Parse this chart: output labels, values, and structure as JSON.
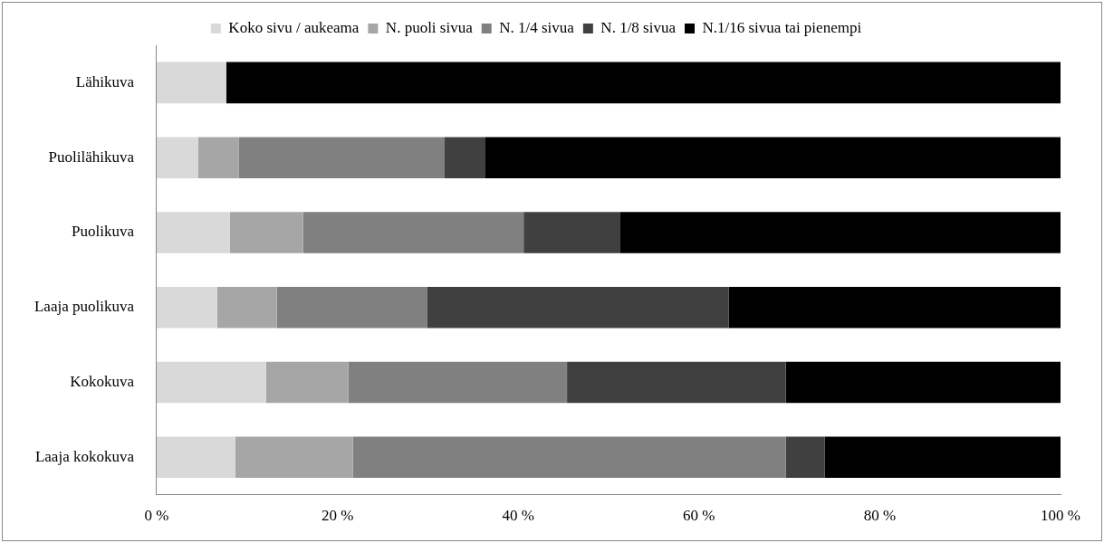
{
  "chart_data": {
    "type": "bar",
    "orientation": "horizontal",
    "stacked": true,
    "legend": "top",
    "grid": false,
    "categories": [
      "Lähikuva",
      "Puolilähikuva",
      "Puolikuva",
      "Laaja puolikuva",
      "Kokokuva",
      "Laaja kokokuva"
    ],
    "xlim": [
      0,
      100
    ],
    "xticks": [
      {
        "value": 0,
        "label": "0 %"
      },
      {
        "value": 20,
        "label": "20 %"
      },
      {
        "value": 40,
        "label": "40 %"
      },
      {
        "value": 60,
        "label": "60 %"
      },
      {
        "value": 80,
        "label": "80 %"
      },
      {
        "value": 100,
        "label": "100 %"
      }
    ],
    "series": [
      {
        "name": "Koko sivu / aukeama",
        "color": "#d9d9d9",
        "values": [
          7.7,
          4.6,
          8.1,
          6.7,
          12.1,
          8.7
        ]
      },
      {
        "name": "N. puoli sivua",
        "color": "#a6a6a6",
        "values": [
          null,
          4.5,
          8.1,
          6.6,
          9.1,
          13.0
        ]
      },
      {
        "name": "N. 1/4 sivua",
        "color": "#808080",
        "values": [
          null,
          22.7,
          24.4,
          16.6,
          24.2,
          47.9
        ]
      },
      {
        "name": "N. 1/8 sivua",
        "color": "#404040",
        "values": [
          null,
          4.5,
          10.7,
          33.4,
          24.2,
          4.3
        ]
      },
      {
        "name": "N.1/16 sivua tai pienempi",
        "color": "#000000",
        "values": [
          92.3,
          63.7,
          48.7,
          36.7,
          30.4,
          26.1
        ]
      }
    ]
  }
}
